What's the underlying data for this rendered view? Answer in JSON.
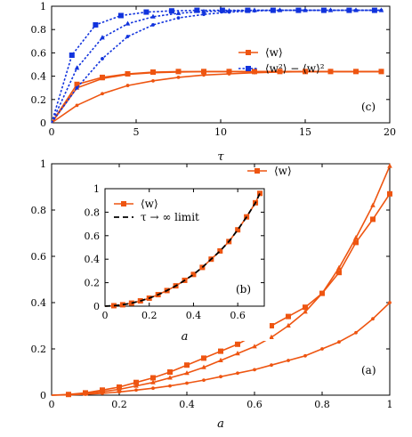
{
  "colors": {
    "orange": "#ee5511",
    "blue": "#1133dd",
    "black": "#000000"
  },
  "chart_data": [
    {
      "type": "line",
      "panel_label": "(c)",
      "xlabel": "τ",
      "ylabel": "",
      "xlim": [
        0,
        20
      ],
      "ylim": [
        0,
        1
      ],
      "xticks": [
        0,
        5,
        10,
        15,
        20
      ],
      "yticks": [
        0,
        0.2,
        0.4,
        0.6,
        0.8,
        1
      ],
      "ytick_labels": [
        "0",
        "0.2",
        "0.4",
        "0.6",
        "0.8",
        "1"
      ],
      "legend_position": "center-right",
      "legend": [
        "⟨w⟩",
        "⟨w²⟩ − ⟨w⟩²"
      ],
      "series": [
        {
          "group": "mean",
          "style": "orange-square",
          "x": [
            0,
            1.5,
            3,
            4.5,
            6,
            7.5,
            9,
            10.5,
            12,
            13.5,
            15,
            16.5,
            18,
            19.5
          ],
          "y": [
            0,
            0.33,
            0.39,
            0.42,
            0.435,
            0.44,
            0.44,
            0.44,
            0.44,
            0.44,
            0.44,
            0.44,
            0.44,
            0.44
          ]
        },
        {
          "group": "mean",
          "style": "orange-triangle",
          "x": [
            0,
            1.5,
            3,
            4.5,
            6,
            7.5,
            9,
            10.5,
            12,
            13.5,
            15,
            16.5,
            18,
            19.5
          ],
          "y": [
            0,
            0.3,
            0.38,
            0.415,
            0.43,
            0.435,
            0.44,
            0.44,
            0.44,
            0.44,
            0.44,
            0.44,
            0.44,
            0.44
          ]
        },
        {
          "group": "mean",
          "style": "orange-circle",
          "x": [
            0,
            1.5,
            3,
            4.5,
            6,
            7.5,
            9,
            10.5,
            12,
            13.5,
            15,
            16.5,
            18,
            19.5
          ],
          "y": [
            0,
            0.15,
            0.25,
            0.32,
            0.36,
            0.39,
            0.41,
            0.42,
            0.43,
            0.435,
            0.44,
            0.44,
            0.44,
            0.44
          ]
        },
        {
          "group": "variance",
          "style": "blue-square",
          "x": [
            0,
            1.2,
            2.6,
            4.1,
            5.6,
            7.1,
            8.6,
            10.1,
            11.6,
            13.1,
            14.6,
            16.1,
            17.6,
            19.1
          ],
          "y": [
            0,
            0.58,
            0.84,
            0.92,
            0.95,
            0.96,
            0.965,
            0.965,
            0.965,
            0.965,
            0.965,
            0.965,
            0.965,
            0.965
          ]
        },
        {
          "group": "variance",
          "style": "blue-triangle",
          "x": [
            0,
            1.5,
            3,
            4.5,
            6,
            7.5,
            9,
            10.5,
            12,
            13.5,
            15,
            16.5,
            18,
            19.5
          ],
          "y": [
            0,
            0.47,
            0.73,
            0.85,
            0.91,
            0.94,
            0.955,
            0.96,
            0.965,
            0.965,
            0.965,
            0.965,
            0.965,
            0.965
          ]
        },
        {
          "group": "variance",
          "style": "blue-circle",
          "x": [
            0,
            1.5,
            3,
            4.5,
            6,
            7.5,
            9,
            10.5,
            12,
            13.5,
            15,
            16.5,
            18,
            19.5
          ],
          "y": [
            0,
            0.3,
            0.55,
            0.74,
            0.84,
            0.9,
            0.93,
            0.95,
            0.96,
            0.965,
            0.965,
            0.965,
            0.965,
            0.965
          ]
        }
      ]
    },
    {
      "type": "line",
      "panel_label": "(a)",
      "xlabel": "a",
      "ylabel": "",
      "xlim": [
        0,
        1
      ],
      "ylim": [
        0,
        1
      ],
      "xticks": [
        0,
        0.2,
        0.4,
        0.6,
        0.8,
        1
      ],
      "yticks": [
        0,
        0.2,
        0.4,
        0.6,
        0.8,
        1
      ],
      "xtick_labels": [
        "0",
        "0.2",
        "0.4",
        "0.6",
        "0.8",
        "1"
      ],
      "ytick_labels": [
        "0",
        "0.2",
        "0.4",
        "0.6",
        "0.8",
        "1"
      ],
      "legend_position": "top-right",
      "legend": [
        "⟨w⟩"
      ],
      "series": [
        {
          "style": "orange-square",
          "x": [
            0,
            0.05,
            0.1,
            0.15,
            0.2,
            0.25,
            0.3,
            0.35,
            0.4,
            0.45,
            0.5,
            0.55,
            0.6,
            0.65,
            0.7,
            0.75,
            0.8,
            0.85,
            0.9,
            0.95,
            1.0
          ],
          "y": [
            0,
            0.003,
            0.01,
            0.022,
            0.035,
            0.055,
            0.075,
            0.1,
            0.13,
            0.16,
            0.19,
            0.22,
            0.26,
            0.3,
            0.34,
            0.38,
            0.44,
            0.53,
            0.66,
            0.76,
            0.87
          ]
        },
        {
          "style": "orange-triangle",
          "x": [
            0,
            0.05,
            0.1,
            0.15,
            0.2,
            0.25,
            0.3,
            0.35,
            0.4,
            0.45,
            0.5,
            0.55,
            0.6,
            0.65,
            0.7,
            0.75,
            0.8,
            0.85,
            0.9,
            0.95,
            1.0
          ],
          "y": [
            0,
            0.002,
            0.007,
            0.015,
            0.025,
            0.04,
            0.055,
            0.075,
            0.095,
            0.12,
            0.15,
            0.18,
            0.21,
            0.25,
            0.3,
            0.36,
            0.44,
            0.55,
            0.68,
            0.82,
            0.99
          ]
        },
        {
          "style": "orange-circle",
          "x": [
            0,
            0.05,
            0.1,
            0.15,
            0.2,
            0.25,
            0.3,
            0.35,
            0.4,
            0.45,
            0.5,
            0.55,
            0.6,
            0.65,
            0.7,
            0.75,
            0.8,
            0.85,
            0.9,
            0.95,
            1.0
          ],
          "y": [
            0,
            0.001,
            0.004,
            0.008,
            0.014,
            0.022,
            0.03,
            0.04,
            0.052,
            0.065,
            0.08,
            0.095,
            0.11,
            0.13,
            0.15,
            0.17,
            0.2,
            0.23,
            0.27,
            0.33,
            0.4
          ]
        }
      ]
    },
    {
      "type": "line",
      "panel_label": "(b)",
      "xlabel": "a",
      "ylabel": "",
      "xlim": [
        0,
        0.72
      ],
      "ylim": [
        0,
        1
      ],
      "xticks": [
        0,
        0.2,
        0.4,
        0.6
      ],
      "yticks": [
        0,
        0.2,
        0.4,
        0.6,
        0.8,
        1
      ],
      "xtick_labels": [
        "0",
        "0.2",
        "0.4",
        "0.6"
      ],
      "ytick_labels": [
        "0",
        "0.2",
        "0.4",
        "0.6",
        "0.8",
        "1"
      ],
      "legend_position": "top-left",
      "legend": [
        "⟨w⟩",
        "τ → ∞ limit"
      ],
      "series": [
        {
          "style": "orange-square",
          "x": [
            0,
            0.04,
            0.08,
            0.12,
            0.16,
            0.2,
            0.24,
            0.28,
            0.32,
            0.36,
            0.4,
            0.44,
            0.48,
            0.52,
            0.56,
            0.6,
            0.64,
            0.68,
            0.7
          ],
          "y": [
            0,
            0.004,
            0.012,
            0.026,
            0.045,
            0.068,
            0.098,
            0.133,
            0.173,
            0.22,
            0.27,
            0.33,
            0.4,
            0.47,
            0.55,
            0.65,
            0.76,
            0.88,
            0.96
          ]
        },
        {
          "style": "black-dashed",
          "x": [
            0,
            0.04,
            0.08,
            0.12,
            0.16,
            0.2,
            0.24,
            0.28,
            0.32,
            0.36,
            0.4,
            0.44,
            0.48,
            0.52,
            0.56,
            0.6,
            0.64,
            0.68,
            0.7
          ],
          "y": [
            0,
            0.004,
            0.012,
            0.026,
            0.045,
            0.068,
            0.098,
            0.133,
            0.173,
            0.22,
            0.27,
            0.33,
            0.4,
            0.47,
            0.55,
            0.65,
            0.76,
            0.88,
            0.96
          ]
        }
      ]
    }
  ]
}
